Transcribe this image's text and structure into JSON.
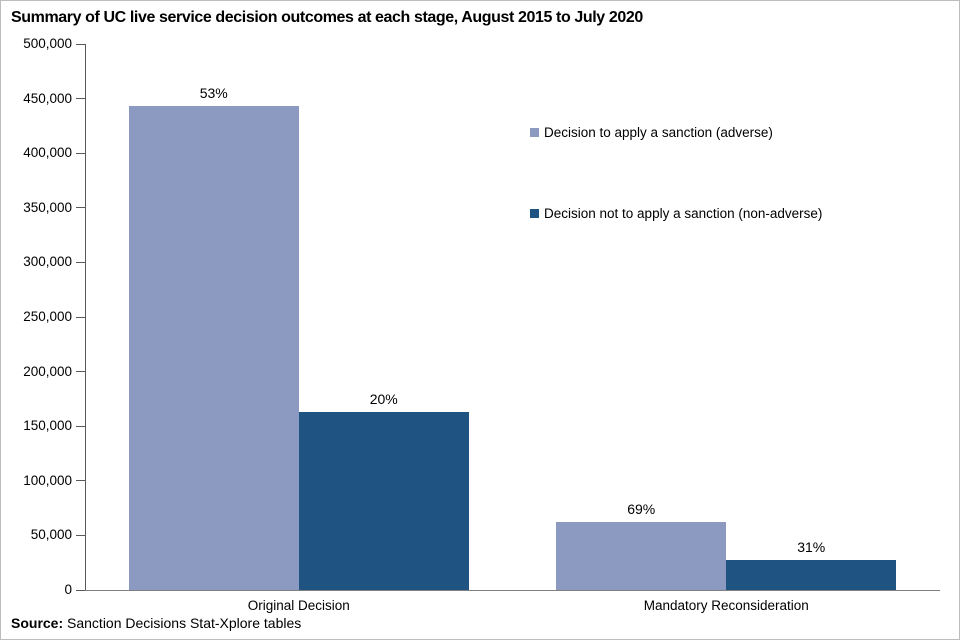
{
  "chart_data": {
    "type": "bar",
    "title": "Summary of UC live service decision outcomes at each stage, August 2015 to July 2020",
    "categories": [
      "Original Decision",
      "Mandatory Reconsideration"
    ],
    "series": [
      {
        "name": "Decision to apply a sanction (adverse)",
        "color": "#8C9AC1",
        "values": [
          443000,
          62000
        ],
        "data_labels": [
          "53%",
          "69%"
        ]
      },
      {
        "name": "Decision not to apply a sanction (non-adverse)",
        "color": "#1F5482",
        "values": [
          163000,
          27500
        ],
        "data_labels": [
          "20%",
          "31%"
        ]
      }
    ],
    "ylim": [
      0,
      500000
    ],
    "ytick_step": 50000,
    "yticks": [
      "0",
      "50,000",
      "100,000",
      "150,000",
      "200,000",
      "250,000",
      "300,000",
      "350,000",
      "400,000",
      "450,000",
      "500,000"
    ],
    "xlabel": "",
    "ylabel": "",
    "grid": false,
    "legend_position": "inside-upper-right"
  },
  "source": {
    "prefix": "Source:",
    "text": " Sanction Decisions Stat-Xplore tables"
  },
  "colors": {
    "axis_y": "#595959",
    "axis_x": "#808080",
    "text": "#000000",
    "background": "#ffffff"
  }
}
